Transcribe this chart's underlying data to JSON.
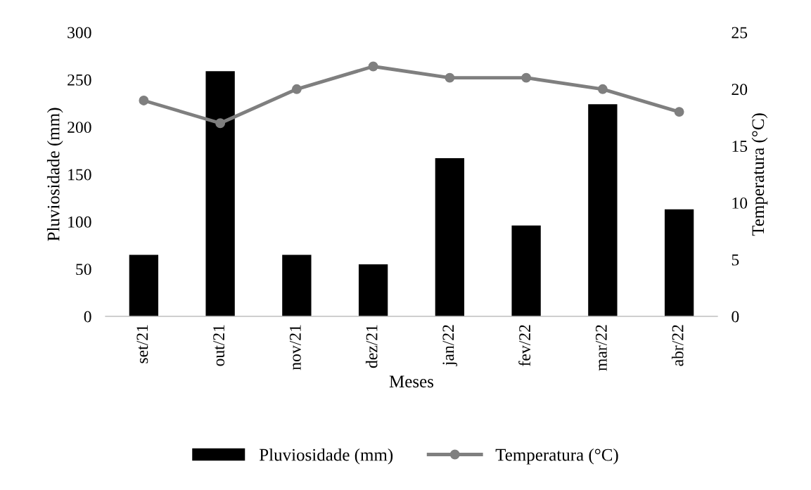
{
  "chart_data": {
    "type": "bar",
    "xlabel": "Meses",
    "ylabel": "Pluviosidade (mm)",
    "y2label": "Temperatura (°C)",
    "categories": [
      "set/21",
      "out/21",
      "nov/21",
      "dez/21",
      "jan/22",
      "fev/22",
      "mar/22",
      "abr/22"
    ],
    "series": [
      {
        "name": "Pluviosidade (mm)",
        "color": "#000000",
        "values": [
          65,
          259,
          65,
          55,
          167,
          96,
          224,
          113
        ]
      },
      {
        "name": "Temperatura (°C)",
        "type": "line",
        "axis": "y2",
        "color": "#7f7f7f",
        "values": [
          19,
          17,
          20,
          22,
          21,
          21,
          20,
          18
        ]
      }
    ],
    "ylim": [
      0,
      300
    ],
    "yticks": [
      0,
      50,
      100,
      150,
      200,
      250,
      300
    ],
    "y2lim": [
      0,
      25
    ],
    "y2ticks": [
      0,
      5,
      10,
      15,
      20,
      25
    ],
    "marker": "circle",
    "line_style": "solid",
    "grid": false,
    "legend": "bottom"
  }
}
